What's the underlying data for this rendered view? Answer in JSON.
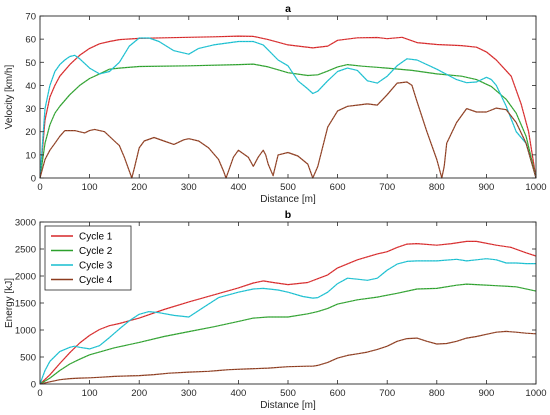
{
  "chart_data": [
    {
      "type": "line",
      "title": "a",
      "xlabel": "Distance [m]",
      "ylabel": "Velocity [km/h]",
      "xlim": [
        0,
        1000
      ],
      "ylim": [
        0,
        70
      ],
      "xticks": [
        0,
        100,
        200,
        300,
        400,
        500,
        600,
        700,
        800,
        900,
        1000
      ],
      "yticks": [
        0,
        10,
        20,
        30,
        40,
        50,
        60,
        70
      ],
      "grid": false,
      "series": [
        {
          "color": "#d62728",
          "x": [
            0,
            10,
            20,
            30,
            40,
            60,
            80,
            100,
            120,
            140,
            160,
            200,
            250,
            300,
            350,
            400,
            430,
            460,
            500,
            550,
            580,
            600,
            640,
            680,
            700,
            730,
            760,
            800,
            850,
            880,
            900,
            920,
            950,
            970,
            985,
            1000
          ],
          "y": [
            0,
            25,
            35,
            40,
            44,
            49,
            53,
            56,
            58,
            59,
            59.8,
            60.3,
            60.6,
            60.8,
            61,
            61.3,
            61.2,
            59.8,
            57.5,
            56.2,
            57,
            59.5,
            60.6,
            60.7,
            60.2,
            60.8,
            58.5,
            57.7,
            57.2,
            56.5,
            54.5,
            51,
            44,
            32,
            20,
            0
          ]
        },
        {
          "color": "#2ca02c",
          "x": [
            0,
            10,
            20,
            30,
            40,
            60,
            80,
            100,
            120,
            140,
            160,
            200,
            300,
            400,
            430,
            460,
            500,
            540,
            560,
            580,
            600,
            620,
            650,
            700,
            750,
            800,
            850,
            880,
            910,
            940,
            960,
            980,
            1000
          ],
          "y": [
            0,
            15,
            23,
            28,
            31,
            36,
            40,
            43,
            45,
            47,
            47.5,
            48.2,
            48.5,
            49,
            49.2,
            48,
            45.5,
            44.3,
            44.6,
            46.2,
            48,
            49,
            48.3,
            47.5,
            46.5,
            45,
            44,
            42.5,
            39.5,
            34,
            28,
            18,
            0
          ]
        },
        {
          "color": "#17becf",
          "x": [
            0,
            10,
            20,
            30,
            40,
            50,
            60,
            70,
            80,
            100,
            120,
            140,
            160,
            180,
            200,
            220,
            240,
            270,
            300,
            320,
            350,
            400,
            430,
            450,
            480,
            500,
            520,
            540,
            550,
            560,
            580,
            600,
            620,
            640,
            660,
            680,
            700,
            720,
            740,
            760,
            800,
            840,
            860,
            880,
            900,
            910,
            920,
            940,
            960,
            980,
            1000
          ],
          "y": [
            0,
            30,
            40,
            46,
            49,
            51,
            52.5,
            53,
            51.5,
            47.5,
            45,
            46,
            50,
            57,
            60.5,
            60.5,
            59,
            55,
            53.5,
            56,
            57.5,
            59,
            59,
            57.5,
            51,
            48.5,
            42,
            38.5,
            36.5,
            37.5,
            42,
            46,
            47.5,
            46.5,
            42,
            41,
            44,
            48.5,
            51.5,
            51,
            47,
            42.5,
            41.2,
            41.5,
            43.5,
            42.5,
            40,
            31,
            20,
            15,
            0
          ]
        },
        {
          "color": "#8c3b1e",
          "x": [
            0,
            10,
            20,
            30,
            40,
            50,
            70,
            90,
            100,
            110,
            130,
            150,
            160,
            170,
            180,
            185,
            190,
            200,
            210,
            230,
            250,
            270,
            290,
            300,
            320,
            340,
            360,
            370,
            375,
            380,
            390,
            400,
            420,
            430,
            440,
            450,
            455,
            460,
            470,
            480,
            500,
            520,
            540,
            550,
            560,
            580,
            600,
            620,
            640,
            660,
            680,
            700,
            720,
            740,
            750,
            760,
            780,
            800,
            810,
            815,
            820,
            840,
            860,
            880,
            900,
            920,
            940,
            960,
            980,
            1000
          ],
          "y": [
            0,
            8,
            12,
            15,
            18,
            20.5,
            20.5,
            19.5,
            20.5,
            21,
            20,
            16,
            14,
            9,
            3,
            0,
            4,
            13,
            16,
            17.5,
            16,
            14.5,
            16.5,
            17,
            16,
            13,
            8,
            3,
            0,
            3,
            9,
            12,
            9,
            5,
            9,
            12,
            10,
            6,
            1,
            10,
            11,
            9.5,
            6,
            0,
            5,
            22,
            29,
            31,
            31.5,
            32,
            31.5,
            36,
            41,
            41.5,
            40,
            33,
            20,
            8,
            0,
            5,
            15,
            24,
            30,
            28.5,
            28.5,
            30.2,
            29.5,
            24,
            15,
            0
          ]
        }
      ]
    },
    {
      "type": "line",
      "title": "b",
      "xlabel": "Distance [m]",
      "ylabel": "Energy [kJ]",
      "xlim": [
        0,
        1000
      ],
      "ylim": [
        0,
        3000
      ],
      "xticks": [
        0,
        100,
        200,
        300,
        400,
        500,
        600,
        700,
        800,
        900,
        1000
      ],
      "yticks": [
        0,
        500,
        1000,
        1500,
        2000,
        2500,
        3000
      ],
      "grid": false,
      "legend": "top-left",
      "series": [
        {
          "name": "Cycle 1",
          "color": "#d62728",
          "x": [
            0,
            20,
            40,
            60,
            80,
            100,
            120,
            140,
            160,
            200,
            250,
            300,
            350,
            400,
            430,
            450,
            470,
            500,
            540,
            560,
            580,
            600,
            640,
            680,
            700,
            720,
            740,
            760,
            800,
            830,
            860,
            880,
            920,
            950,
            980,
            1000
          ],
          "y": [
            0,
            170,
            380,
            580,
            760,
            900,
            1010,
            1080,
            1120,
            1220,
            1380,
            1520,
            1650,
            1780,
            1870,
            1910,
            1880,
            1840,
            1880,
            1950,
            2020,
            2150,
            2300,
            2410,
            2450,
            2530,
            2590,
            2600,
            2570,
            2600,
            2640,
            2640,
            2570,
            2530,
            2430,
            2370
          ]
        },
        {
          "name": "Cycle 2",
          "color": "#2ca02c",
          "x": [
            0,
            20,
            40,
            60,
            80,
            100,
            150,
            200,
            250,
            300,
            350,
            400,
            430,
            460,
            500,
            540,
            560,
            580,
            600,
            640,
            680,
            720,
            760,
            800,
            840,
            860,
            880,
            920,
            960,
            1000
          ],
          "y": [
            0,
            110,
            250,
            370,
            460,
            540,
            670,
            770,
            880,
            970,
            1060,
            1160,
            1220,
            1240,
            1240,
            1300,
            1340,
            1400,
            1480,
            1560,
            1610,
            1680,
            1760,
            1770,
            1830,
            1850,
            1840,
            1820,
            1800,
            1720
          ]
        },
        {
          "name": "Cycle 3",
          "color": "#17becf",
          "x": [
            0,
            10,
            20,
            40,
            60,
            70,
            80,
            100,
            120,
            140,
            160,
            180,
            200,
            220,
            240,
            270,
            300,
            330,
            360,
            400,
            430,
            450,
            480,
            500,
            530,
            550,
            560,
            580,
            600,
            620,
            640,
            660,
            680,
            700,
            720,
            740,
            760,
            800,
            840,
            860,
            880,
            900,
            920,
            940,
            960,
            980,
            1000
          ],
          "y": [
            0,
            250,
            420,
            600,
            680,
            700,
            680,
            650,
            710,
            860,
            1020,
            1170,
            1290,
            1340,
            1320,
            1270,
            1240,
            1420,
            1600,
            1700,
            1760,
            1770,
            1740,
            1700,
            1620,
            1590,
            1600,
            1700,
            1860,
            1960,
            1940,
            1920,
            1960,
            2110,
            2220,
            2270,
            2280,
            2280,
            2310,
            2280,
            2300,
            2320,
            2300,
            2240,
            2240,
            2230,
            2230
          ]
        },
        {
          "name": "Cycle 4",
          "color": "#8c3b1e",
          "x": [
            0,
            20,
            40,
            60,
            80,
            100,
            120,
            150,
            180,
            200,
            230,
            260,
            300,
            340,
            360,
            380,
            420,
            460,
            500,
            540,
            550,
            560,
            580,
            600,
            620,
            640,
            660,
            680,
            700,
            720,
            740,
            760,
            780,
            800,
            820,
            840,
            860,
            880,
            900,
            920,
            940,
            960,
            980,
            1000
          ],
          "y": [
            0,
            40,
            80,
            100,
            110,
            115,
            125,
            140,
            150,
            155,
            175,
            200,
            220,
            235,
            250,
            265,
            280,
            295,
            320,
            330,
            330,
            345,
            400,
            480,
            530,
            560,
            590,
            640,
            700,
            790,
            840,
            850,
            790,
            740,
            750,
            790,
            850,
            880,
            920,
            960,
            975,
            960,
            940,
            930
          ]
        }
      ]
    }
  ]
}
